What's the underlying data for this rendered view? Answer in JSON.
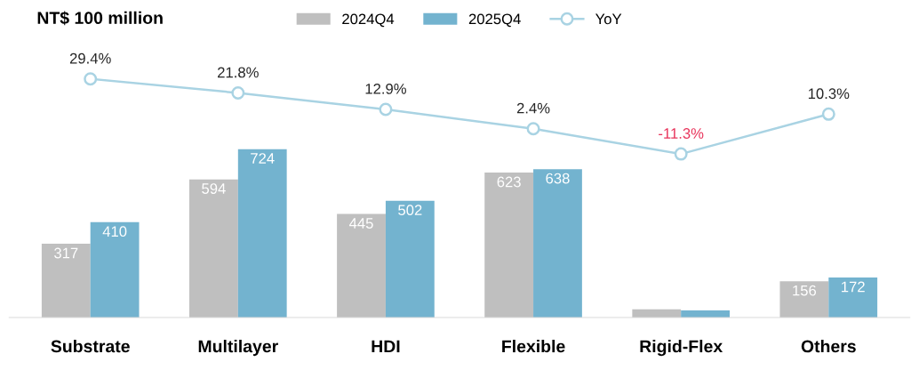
{
  "chart_data": {
    "type": "bar",
    "title": "NT$ 100 million",
    "categories": [
      "Substrate",
      "Multilayer",
      "HDI",
      "Flexible",
      "Rigid-Flex",
      "Others"
    ],
    "series": [
      {
        "name": "2024Q4",
        "color": "#bfbfbf",
        "values": [
          317,
          594,
          445,
          623,
          35,
          156
        ],
        "value_labels": [
          "317",
          "594",
          "445",
          "623",
          null,
          "156"
        ]
      },
      {
        "name": "2025Q4",
        "color": "#73b3cf",
        "values": [
          410,
          724,
          502,
          638,
          31,
          172
        ],
        "value_labels": [
          "410",
          "724",
          "502",
          "638",
          null,
          "172"
        ]
      },
      {
        "name": "YoY",
        "type": "line",
        "axis": "y2",
        "color": "#a9d3e3",
        "marker": "circle",
        "values": [
          29.4,
          21.8,
          12.9,
          2.4,
          -11.3,
          10.3
        ],
        "value_labels": [
          "29.4%",
          "21.8%",
          "12.9%",
          "2.4%",
          "-11.3%",
          "10.3%"
        ]
      }
    ],
    "ylim": [
      0,
      1300
    ],
    "y2lim": [
      -100,
      64
    ],
    "tick_labels": "x",
    "legend": "top",
    "grid": false
  }
}
